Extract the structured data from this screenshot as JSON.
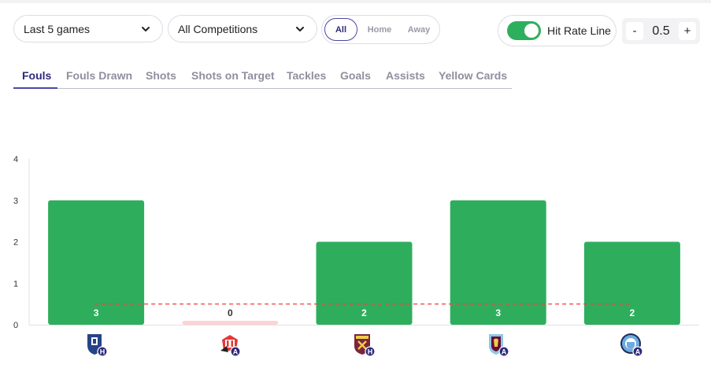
{
  "filters": {
    "games": "Last 5 games",
    "competitions": "All Competitions",
    "venue_options": [
      "All",
      "Home",
      "Away"
    ],
    "venue_selected": "All"
  },
  "hit_rate": {
    "label": "Hit Rate Line",
    "enabled": true,
    "value": "0.5",
    "decrement_label": "-",
    "increment_label": "+"
  },
  "tabs": [
    "Fouls",
    "Fouls Drawn",
    "Shots",
    "Shots on Target",
    "Tackles",
    "Goals",
    "Assists",
    "Yellow Cards"
  ],
  "active_tab": "Fouls",
  "colors": {
    "hit": "#2eae5d",
    "miss": "#fdd3d3",
    "line": "#ee4444",
    "accent": "#4b48a8"
  },
  "chart_data": {
    "type": "bar",
    "categories": [
      "Everton (H)",
      "Sunderland (A)",
      "West Ham (H)",
      "Aston Villa (A)",
      "Manchester City (A)"
    ],
    "venues": [
      "H",
      "A",
      "H",
      "A",
      "A"
    ],
    "values": [
      3,
      0,
      2,
      3,
      2
    ],
    "ylim": [
      0,
      4
    ],
    "yticks": [
      0,
      1,
      2,
      3,
      4
    ],
    "threshold": 0.5,
    "grid": false,
    "title": "",
    "xlabel": "",
    "ylabel": ""
  }
}
